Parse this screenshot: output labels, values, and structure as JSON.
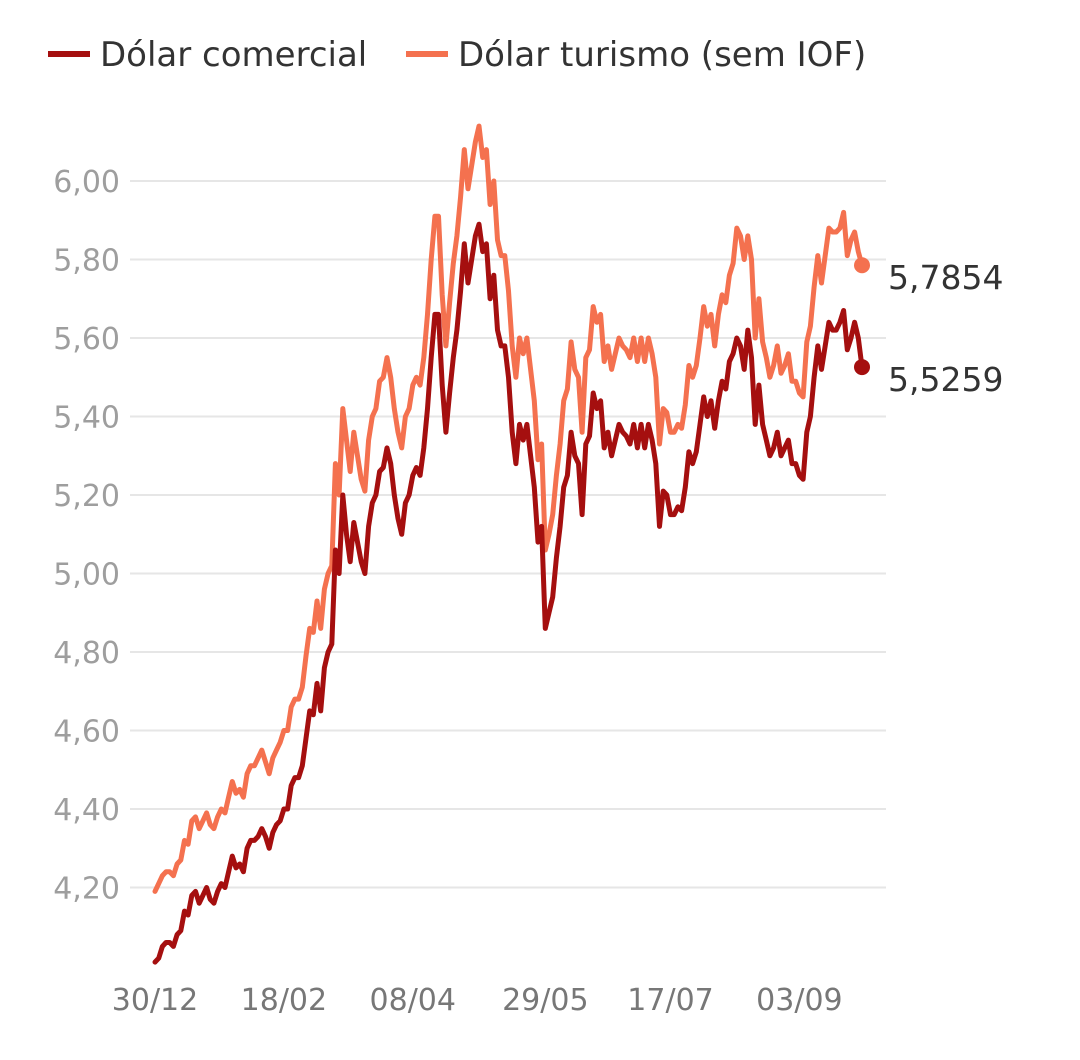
{
  "chart_data": {
    "type": "line",
    "title": "",
    "xlabel": "",
    "ylabel": "",
    "ylim": [
      4.0,
      6.2
    ],
    "y_ticks": [
      "4,20",
      "4,40",
      "4,60",
      "4,80",
      "5,00",
      "5,20",
      "5,40",
      "5,60",
      "5,80",
      "6,00"
    ],
    "y_tick_values": [
      4.2,
      4.4,
      4.6,
      4.8,
      5.0,
      5.2,
      5.4,
      5.6,
      5.8,
      6.0
    ],
    "x_ticks": [
      "30/12",
      "18/02",
      "08/04",
      "29/05",
      "17/07",
      "03/09"
    ],
    "x_tick_index": [
      0,
      35,
      70,
      106,
      140,
      175
    ],
    "grid": "horizontal",
    "legend": "top-left",
    "series": [
      {
        "name": "Dólar comercial",
        "color": "#a50f0f",
        "end_label": "5,5259",
        "values": [
          4.01,
          4.02,
          4.05,
          4.06,
          4.06,
          4.05,
          4.08,
          4.09,
          4.14,
          4.13,
          4.18,
          4.19,
          4.16,
          4.18,
          4.2,
          4.17,
          4.16,
          4.19,
          4.21,
          4.2,
          4.24,
          4.28,
          4.25,
          4.26,
          4.24,
          4.3,
          4.32,
          4.32,
          4.33,
          4.35,
          4.33,
          4.3,
          4.34,
          4.36,
          4.37,
          4.4,
          4.4,
          4.46,
          4.48,
          4.48,
          4.51,
          4.58,
          4.65,
          4.64,
          4.72,
          4.65,
          4.76,
          4.8,
          4.82,
          5.06,
          5.0,
          5.2,
          5.1,
          5.03,
          5.13,
          5.08,
          5.03,
          5.0,
          5.12,
          5.18,
          5.2,
          5.26,
          5.27,
          5.32,
          5.28,
          5.2,
          5.14,
          5.1,
          5.18,
          5.2,
          5.25,
          5.27,
          5.25,
          5.32,
          5.42,
          5.55,
          5.66,
          5.66,
          5.48,
          5.36,
          5.46,
          5.55,
          5.62,
          5.72,
          5.84,
          5.74,
          5.8,
          5.86,
          5.89,
          5.82,
          5.84,
          5.7,
          5.76,
          5.62,
          5.58,
          5.58,
          5.5,
          5.36,
          5.28,
          5.38,
          5.34,
          5.38,
          5.3,
          5.22,
          5.08,
          5.12,
          4.86,
          4.9,
          4.94,
          5.04,
          5.12,
          5.22,
          5.25,
          5.36,
          5.3,
          5.28,
          5.15,
          5.33,
          5.35,
          5.46,
          5.42,
          5.44,
          5.32,
          5.36,
          5.3,
          5.34,
          5.38,
          5.36,
          5.35,
          5.33,
          5.38,
          5.32,
          5.38,
          5.32,
          5.38,
          5.34,
          5.28,
          5.12,
          5.21,
          5.2,
          5.15,
          5.15,
          5.17,
          5.16,
          5.22,
          5.31,
          5.28,
          5.31,
          5.38,
          5.45,
          5.4,
          5.44,
          5.37,
          5.44,
          5.49,
          5.47,
          5.54,
          5.56,
          5.6,
          5.58,
          5.52,
          5.62,
          5.55,
          5.38,
          5.48,
          5.38,
          5.34,
          5.3,
          5.32,
          5.36,
          5.3,
          5.32,
          5.34,
          5.28,
          5.28,
          5.25,
          5.24,
          5.36,
          5.4,
          5.5,
          5.58,
          5.52,
          5.58,
          5.64,
          5.62,
          5.62,
          5.64,
          5.67,
          5.57,
          5.6,
          5.64,
          5.6,
          5.5259
        ]
      },
      {
        "name": "Dólar turismo (sem IOF)",
        "color": "#f4714f",
        "end_label": "5,7854",
        "values": [
          4.19,
          4.21,
          4.23,
          4.24,
          4.24,
          4.23,
          4.26,
          4.27,
          4.32,
          4.31,
          4.37,
          4.38,
          4.35,
          4.37,
          4.39,
          4.36,
          4.35,
          4.38,
          4.4,
          4.39,
          4.43,
          4.47,
          4.44,
          4.45,
          4.43,
          4.49,
          4.51,
          4.51,
          4.53,
          4.55,
          4.52,
          4.49,
          4.53,
          4.55,
          4.57,
          4.6,
          4.6,
          4.66,
          4.68,
          4.68,
          4.71,
          4.79,
          4.86,
          4.85,
          4.93,
          4.86,
          4.96,
          5.0,
          5.02,
          5.28,
          5.2,
          5.42,
          5.34,
          5.26,
          5.36,
          5.3,
          5.24,
          5.21,
          5.34,
          5.4,
          5.42,
          5.49,
          5.5,
          5.55,
          5.5,
          5.42,
          5.36,
          5.32,
          5.4,
          5.42,
          5.48,
          5.5,
          5.48,
          5.55,
          5.66,
          5.8,
          5.91,
          5.91,
          5.71,
          5.58,
          5.69,
          5.79,
          5.86,
          5.96,
          6.08,
          5.98,
          6.04,
          6.1,
          6.14,
          6.06,
          6.08,
          5.94,
          6.0,
          5.85,
          5.81,
          5.81,
          5.72,
          5.58,
          5.5,
          5.6,
          5.56,
          5.6,
          5.52,
          5.44,
          5.29,
          5.33,
          5.06,
          5.1,
          5.15,
          5.25,
          5.33,
          5.44,
          5.47,
          5.59,
          5.52,
          5.5,
          5.36,
          5.55,
          5.57,
          5.68,
          5.64,
          5.66,
          5.54,
          5.58,
          5.52,
          5.56,
          5.6,
          5.58,
          5.57,
          5.55,
          5.6,
          5.54,
          5.6,
          5.54,
          5.6,
          5.56,
          5.5,
          5.33,
          5.42,
          5.41,
          5.36,
          5.36,
          5.38,
          5.37,
          5.43,
          5.53,
          5.5,
          5.53,
          5.6,
          5.68,
          5.63,
          5.66,
          5.58,
          5.66,
          5.71,
          5.69,
          5.76,
          5.79,
          5.88,
          5.86,
          5.8,
          5.86,
          5.8,
          5.6,
          5.7,
          5.59,
          5.55,
          5.5,
          5.53,
          5.58,
          5.51,
          5.53,
          5.56,
          5.49,
          5.49,
          5.46,
          5.45,
          5.59,
          5.63,
          5.73,
          5.81,
          5.74,
          5.81,
          5.88,
          5.87,
          5.87,
          5.88,
          5.92,
          5.81,
          5.85,
          5.87,
          5.82,
          5.7854
        ]
      }
    ]
  }
}
